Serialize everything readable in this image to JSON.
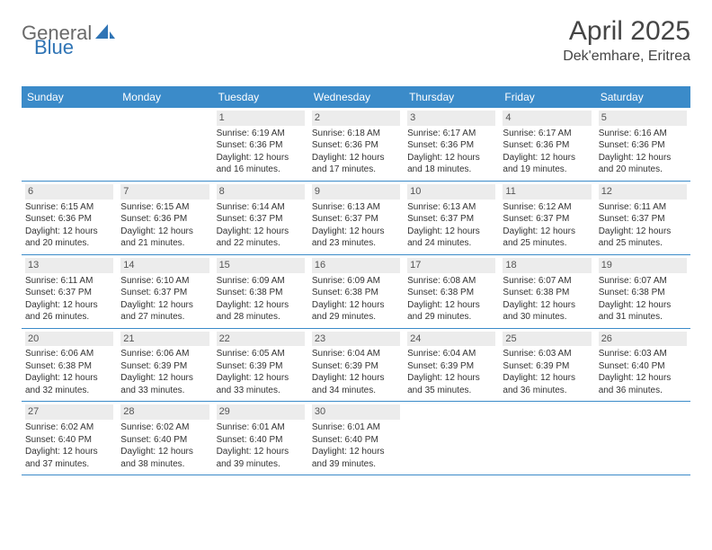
{
  "logo": {
    "part1": "General",
    "part2": "Blue"
  },
  "title": "April 2025",
  "location": "Dek'emhare, Eritrea",
  "weekdays": [
    "Sunday",
    "Monday",
    "Tuesday",
    "Wednesday",
    "Thursday",
    "Friday",
    "Saturday"
  ],
  "colors": {
    "header_bg": "#3b8bc9",
    "daynum_bg": "#ececec",
    "border": "#3b8bc9",
    "title_color": "#454545",
    "logo_gray": "#6a6a6a",
    "logo_blue": "#2f74b5"
  },
  "weeks": [
    [
      {
        "n": "",
        "sr": "",
        "ss": "",
        "dl": ""
      },
      {
        "n": "",
        "sr": "",
        "ss": "",
        "dl": ""
      },
      {
        "n": "1",
        "sr": "Sunrise: 6:19 AM",
        "ss": "Sunset: 6:36 PM",
        "dl": "Daylight: 12 hours and 16 minutes."
      },
      {
        "n": "2",
        "sr": "Sunrise: 6:18 AM",
        "ss": "Sunset: 6:36 PM",
        "dl": "Daylight: 12 hours and 17 minutes."
      },
      {
        "n": "3",
        "sr": "Sunrise: 6:17 AM",
        "ss": "Sunset: 6:36 PM",
        "dl": "Daylight: 12 hours and 18 minutes."
      },
      {
        "n": "4",
        "sr": "Sunrise: 6:17 AM",
        "ss": "Sunset: 6:36 PM",
        "dl": "Daylight: 12 hours and 19 minutes."
      },
      {
        "n": "5",
        "sr": "Sunrise: 6:16 AM",
        "ss": "Sunset: 6:36 PM",
        "dl": "Daylight: 12 hours and 20 minutes."
      }
    ],
    [
      {
        "n": "6",
        "sr": "Sunrise: 6:15 AM",
        "ss": "Sunset: 6:36 PM",
        "dl": "Daylight: 12 hours and 20 minutes."
      },
      {
        "n": "7",
        "sr": "Sunrise: 6:15 AM",
        "ss": "Sunset: 6:36 PM",
        "dl": "Daylight: 12 hours and 21 minutes."
      },
      {
        "n": "8",
        "sr": "Sunrise: 6:14 AM",
        "ss": "Sunset: 6:37 PM",
        "dl": "Daylight: 12 hours and 22 minutes."
      },
      {
        "n": "9",
        "sr": "Sunrise: 6:13 AM",
        "ss": "Sunset: 6:37 PM",
        "dl": "Daylight: 12 hours and 23 minutes."
      },
      {
        "n": "10",
        "sr": "Sunrise: 6:13 AM",
        "ss": "Sunset: 6:37 PM",
        "dl": "Daylight: 12 hours and 24 minutes."
      },
      {
        "n": "11",
        "sr": "Sunrise: 6:12 AM",
        "ss": "Sunset: 6:37 PM",
        "dl": "Daylight: 12 hours and 25 minutes."
      },
      {
        "n": "12",
        "sr": "Sunrise: 6:11 AM",
        "ss": "Sunset: 6:37 PM",
        "dl": "Daylight: 12 hours and 25 minutes."
      }
    ],
    [
      {
        "n": "13",
        "sr": "Sunrise: 6:11 AM",
        "ss": "Sunset: 6:37 PM",
        "dl": "Daylight: 12 hours and 26 minutes."
      },
      {
        "n": "14",
        "sr": "Sunrise: 6:10 AM",
        "ss": "Sunset: 6:37 PM",
        "dl": "Daylight: 12 hours and 27 minutes."
      },
      {
        "n": "15",
        "sr": "Sunrise: 6:09 AM",
        "ss": "Sunset: 6:38 PM",
        "dl": "Daylight: 12 hours and 28 minutes."
      },
      {
        "n": "16",
        "sr": "Sunrise: 6:09 AM",
        "ss": "Sunset: 6:38 PM",
        "dl": "Daylight: 12 hours and 29 minutes."
      },
      {
        "n": "17",
        "sr": "Sunrise: 6:08 AM",
        "ss": "Sunset: 6:38 PM",
        "dl": "Daylight: 12 hours and 29 minutes."
      },
      {
        "n": "18",
        "sr": "Sunrise: 6:07 AM",
        "ss": "Sunset: 6:38 PM",
        "dl": "Daylight: 12 hours and 30 minutes."
      },
      {
        "n": "19",
        "sr": "Sunrise: 6:07 AM",
        "ss": "Sunset: 6:38 PM",
        "dl": "Daylight: 12 hours and 31 minutes."
      }
    ],
    [
      {
        "n": "20",
        "sr": "Sunrise: 6:06 AM",
        "ss": "Sunset: 6:38 PM",
        "dl": "Daylight: 12 hours and 32 minutes."
      },
      {
        "n": "21",
        "sr": "Sunrise: 6:06 AM",
        "ss": "Sunset: 6:39 PM",
        "dl": "Daylight: 12 hours and 33 minutes."
      },
      {
        "n": "22",
        "sr": "Sunrise: 6:05 AM",
        "ss": "Sunset: 6:39 PM",
        "dl": "Daylight: 12 hours and 33 minutes."
      },
      {
        "n": "23",
        "sr": "Sunrise: 6:04 AM",
        "ss": "Sunset: 6:39 PM",
        "dl": "Daylight: 12 hours and 34 minutes."
      },
      {
        "n": "24",
        "sr": "Sunrise: 6:04 AM",
        "ss": "Sunset: 6:39 PM",
        "dl": "Daylight: 12 hours and 35 minutes."
      },
      {
        "n": "25",
        "sr": "Sunrise: 6:03 AM",
        "ss": "Sunset: 6:39 PM",
        "dl": "Daylight: 12 hours and 36 minutes."
      },
      {
        "n": "26",
        "sr": "Sunrise: 6:03 AM",
        "ss": "Sunset: 6:40 PM",
        "dl": "Daylight: 12 hours and 36 minutes."
      }
    ],
    [
      {
        "n": "27",
        "sr": "Sunrise: 6:02 AM",
        "ss": "Sunset: 6:40 PM",
        "dl": "Daylight: 12 hours and 37 minutes."
      },
      {
        "n": "28",
        "sr": "Sunrise: 6:02 AM",
        "ss": "Sunset: 6:40 PM",
        "dl": "Daylight: 12 hours and 38 minutes."
      },
      {
        "n": "29",
        "sr": "Sunrise: 6:01 AM",
        "ss": "Sunset: 6:40 PM",
        "dl": "Daylight: 12 hours and 39 minutes."
      },
      {
        "n": "30",
        "sr": "Sunrise: 6:01 AM",
        "ss": "Sunset: 6:40 PM",
        "dl": "Daylight: 12 hours and 39 minutes."
      },
      {
        "n": "",
        "sr": "",
        "ss": "",
        "dl": ""
      },
      {
        "n": "",
        "sr": "",
        "ss": "",
        "dl": ""
      },
      {
        "n": "",
        "sr": "",
        "ss": "",
        "dl": ""
      }
    ]
  ]
}
